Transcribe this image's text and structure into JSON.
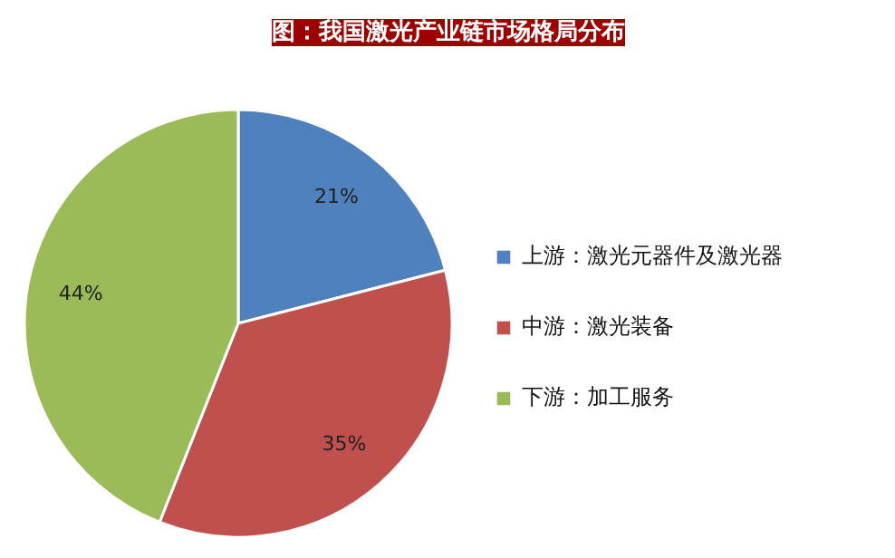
{
  "chart_data": {
    "type": "pie",
    "title": "图：我国激光产业链市场格局分布",
    "categories": [
      "上游：激光元器件及激光器",
      "中游：激光装备",
      "下游：加工服务"
    ],
    "values": [
      21,
      35,
      44
    ],
    "colors": [
      "#4f81bd",
      "#c0504d",
      "#9bbb59"
    ],
    "value_labels": [
      "21%",
      "35%",
      "44%"
    ],
    "legend": "right"
  }
}
